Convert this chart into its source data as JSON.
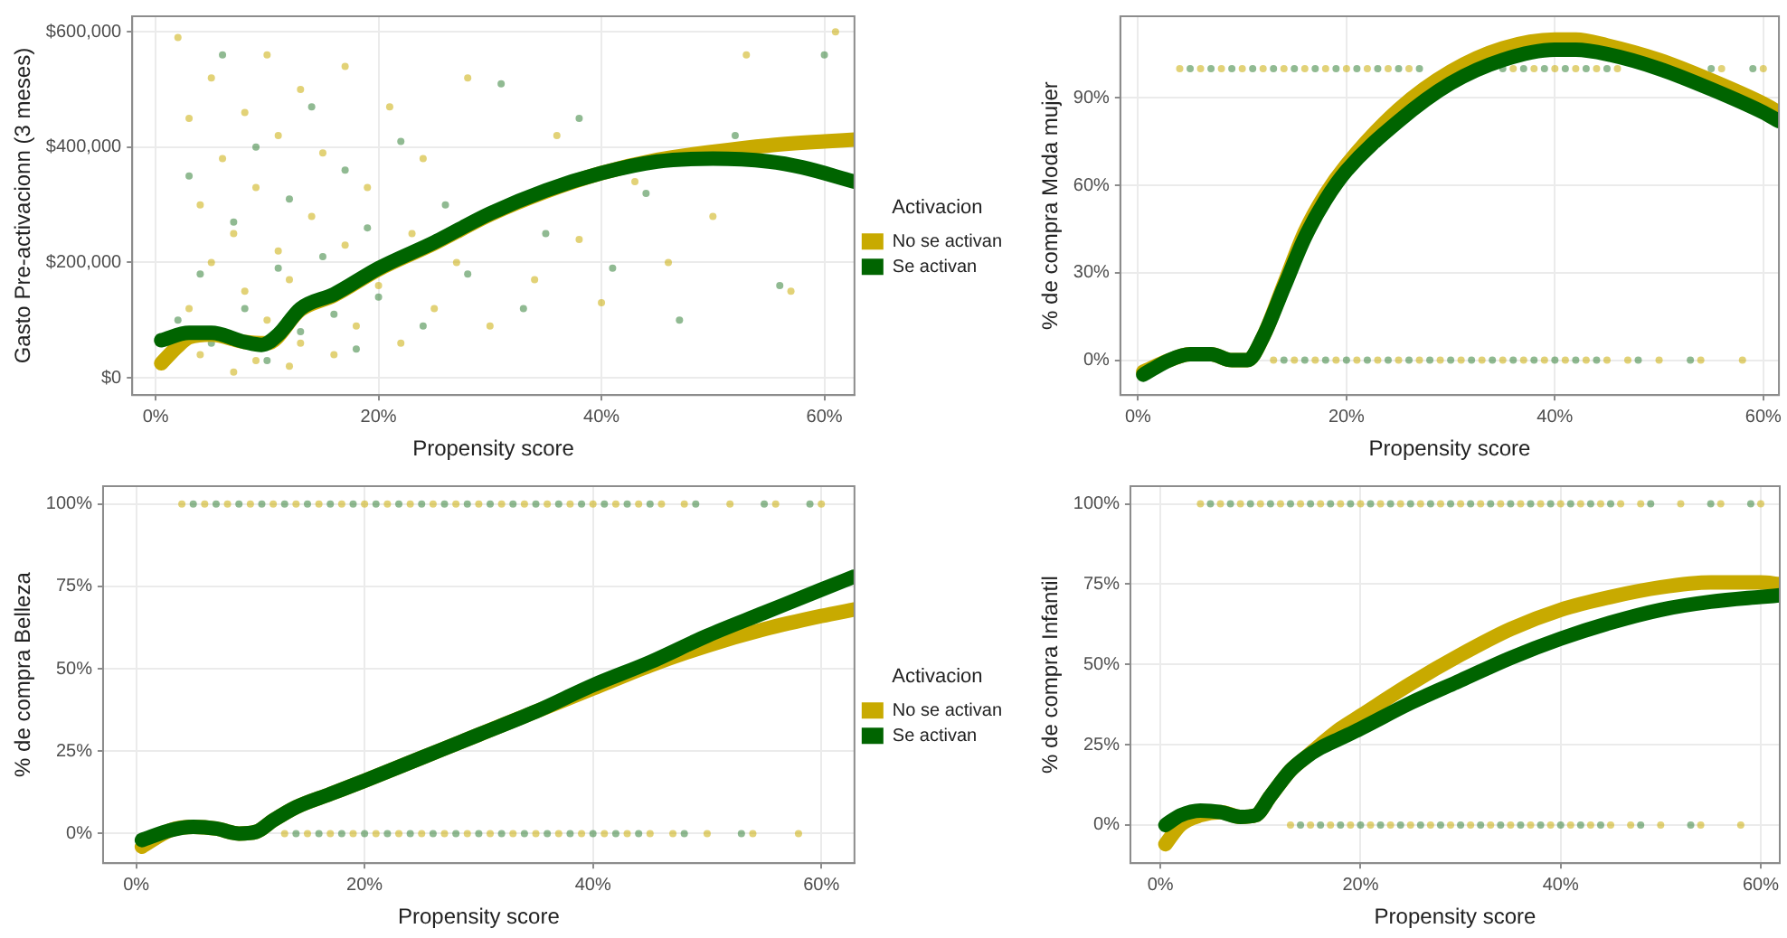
{
  "chart_data": [
    {
      "type": "line",
      "xlabel": "Propensity score",
      "ylabel": "Gasto Pre-activacionn (3 meses)",
      "legend": "right",
      "legend_title": "Activacion",
      "grid": true,
      "xlim": [
        -2.1,
        62.7
      ],
      "xticks": [
        {
          "value": 0,
          "label": "0%"
        },
        {
          "value": 20,
          "label": "20%"
        },
        {
          "value": 40,
          "label": "40%"
        },
        {
          "value": 60,
          "label": "60%"
        }
      ],
      "ylim": [
        -30000,
        627000
      ],
      "yticks": [
        {
          "value": 0,
          "label": "$0"
        },
        {
          "value": 200000,
          "label": "$200,000"
        },
        {
          "value": 400000,
          "label": "$400,000"
        },
        {
          "value": 600000,
          "label": "$600,000"
        }
      ],
      "series": [
        {
          "type": "scatter",
          "marker": "circle",
          "color": "#c8aa00",
          "x": [
            2,
            3,
            3,
            4,
            4,
            5,
            5,
            6,
            7,
            7,
            8,
            8,
            9,
            9,
            10,
            10,
            11,
            11,
            12,
            12,
            13,
            13,
            14,
            15,
            16,
            17,
            17,
            18,
            19,
            20,
            21,
            22,
            23,
            24,
            25,
            27,
            28,
            30,
            34,
            36,
            38,
            40,
            43,
            46,
            50,
            53,
            57,
            61
          ],
          "values": [
            590000,
            450000,
            120000,
            300000,
            40000,
            520000,
            200000,
            380000,
            10000,
            250000,
            460000,
            150000,
            30000,
            330000,
            560000,
            100000,
            220000,
            420000,
            20000,
            170000,
            500000,
            60000,
            280000,
            390000,
            40000,
            230000,
            540000,
            90000,
            330000,
            160000,
            470000,
            60000,
            250000,
            380000,
            120000,
            200000,
            520000,
            90000,
            170000,
            420000,
            240000,
            130000,
            340000,
            200000,
            280000,
            560000,
            150000,
            600000
          ]
        },
        {
          "type": "scatter",
          "marker": "circle",
          "color": "#2e7d32",
          "x": [
            2,
            3,
            4,
            5,
            6,
            7,
            8,
            9,
            10,
            11,
            12,
            13,
            14,
            15,
            16,
            17,
            18,
            19,
            20,
            22,
            24,
            26,
            28,
            31,
            33,
            35,
            38,
            41,
            44,
            47,
            52,
            56,
            60
          ],
          "values": [
            100000,
            350000,
            180000,
            60000,
            560000,
            270000,
            120000,
            400000,
            30000,
            190000,
            310000,
            80000,
            470000,
            210000,
            110000,
            360000,
            50000,
            260000,
            140000,
            410000,
            90000,
            300000,
            180000,
            510000,
            120000,
            250000,
            450000,
            190000,
            320000,
            100000,
            420000,
            160000,
            560000
          ]
        },
        {
          "name": "No se activan",
          "color": "#c8aa00",
          "x": [
            0.5,
            2,
            3,
            5,
            8,
            10,
            13,
            16,
            20,
            25,
            30,
            35,
            40,
            45,
            50,
            55,
            60,
            62.7
          ],
          "values": [
            25000,
            55000,
            70000,
            75000,
            62000,
            60000,
            118000,
            143000,
            188000,
            233000,
            283000,
            323000,
            355000,
            378000,
            392000,
            403000,
            410000,
            413000
          ]
        },
        {
          "name": "Se activan",
          "color": "#006400",
          "x": [
            0.5,
            3,
            5,
            8,
            9.5,
            11,
            13,
            16,
            20,
            25,
            30,
            35,
            40,
            45,
            50,
            55,
            58,
            62.7
          ],
          "values": [
            65000,
            78000,
            78000,
            62000,
            57000,
            75000,
            120000,
            145000,
            190000,
            235000,
            285000,
            325000,
            355000,
            375000,
            380000,
            375000,
            365000,
            340000
          ]
        }
      ]
    },
    {
      "type": "line",
      "xlabel": "Propensity score",
      "ylabel": "% de compra Moda mujer",
      "grid": true,
      "xlim": [
        -1.7,
        61.5
      ],
      "xticks": [
        {
          "value": 0,
          "label": "0%"
        },
        {
          "value": 20,
          "label": "20%"
        },
        {
          "value": 40,
          "label": "40%"
        },
        {
          "value": 60,
          "label": "60%"
        }
      ],
      "ylim": [
        -12,
        118
      ],
      "yticks": [
        {
          "value": 0,
          "label": "0%"
        },
        {
          "value": 30,
          "label": "30%"
        },
        {
          "value": 60,
          "label": "60%"
        },
        {
          "value": 90,
          "label": "90%"
        }
      ],
      "series": [
        {
          "type": "scatter",
          "marker": "circle",
          "color": "#c8aa00",
          "x": [
            13,
            15,
            17,
            19,
            21,
            23,
            25,
            27,
            29,
            31,
            33,
            35,
            37,
            39,
            41,
            43,
            45,
            47,
            50,
            54,
            58,
            4,
            6,
            8,
            10,
            12,
            14,
            16,
            18,
            20,
            22,
            24,
            26,
            36,
            38,
            40,
            42,
            44,
            46,
            56,
            60
          ],
          "values": [
            0,
            0,
            0,
            0,
            0,
            0,
            0,
            0,
            0,
            0,
            0,
            0,
            0,
            0,
            0,
            0,
            0,
            0,
            0,
            0,
            0,
            100,
            100,
            100,
            100,
            100,
            100,
            100,
            100,
            100,
            100,
            100,
            100,
            100,
            100,
            100,
            100,
            100,
            100,
            100,
            100
          ]
        },
        {
          "type": "scatter",
          "marker": "circle",
          "color": "#2e7d32",
          "x": [
            14,
            16,
            18,
            20,
            22,
            24,
            26,
            28,
            30,
            32,
            34,
            36,
            38,
            40,
            42,
            44,
            48,
            53,
            5,
            7,
            9,
            11,
            13,
            15,
            17,
            19,
            21,
            23,
            25,
            27,
            35,
            37,
            39,
            41,
            43,
            45,
            55,
            59
          ],
          "values": [
            0,
            0,
            0,
            0,
            0,
            0,
            0,
            0,
            0,
            0,
            0,
            0,
            0,
            0,
            0,
            0,
            0,
            0,
            100,
            100,
            100,
            100,
            100,
            100,
            100,
            100,
            100,
            100,
            100,
            100,
            100,
            100,
            100,
            100,
            100,
            100,
            100,
            100
          ]
        },
        {
          "color": "#c8aa00",
          "x": [
            0.5,
            3,
            5,
            7,
            9,
            10.5,
            12,
            14,
            16,
            18,
            20,
            25,
            30,
            35,
            40,
            42,
            45,
            50,
            55,
            60,
            61.5
          ],
          "values": [
            -4,
            0,
            2,
            2,
            0,
            0,
            8,
            26,
            44,
            57,
            67,
            86,
            99,
            107,
            110,
            110,
            108,
            103,
            96,
            88,
            85
          ]
        },
        {
          "color": "#006400",
          "x": [
            0.5,
            3,
            5,
            7,
            9,
            10.5,
            12,
            14,
            16,
            18,
            20,
            25,
            30,
            35,
            40,
            42,
            45,
            50,
            55,
            60,
            61.5
          ],
          "values": [
            -5,
            0,
            2,
            2,
            0,
            0,
            8,
            25,
            42,
            55,
            65,
            82,
            95,
            103,
            106.5,
            106.5,
            105,
            100,
            93,
            85,
            82
          ]
        }
      ]
    },
    {
      "type": "line",
      "xlabel": "Propensity score",
      "ylabel": "% de compra Belleza",
      "legend": "right",
      "legend_title": "Activacion",
      "grid": true,
      "xlim": [
        -2.9,
        62.9
      ],
      "xticks": [
        {
          "value": 0,
          "label": "0%"
        },
        {
          "value": 20,
          "label": "20%"
        },
        {
          "value": 40,
          "label": "40%"
        },
        {
          "value": 60,
          "label": "60%"
        }
      ],
      "ylim": [
        -9,
        105.4
      ],
      "yticks": [
        {
          "value": 0,
          "label": "0%"
        },
        {
          "value": 25,
          "label": "25%"
        },
        {
          "value": 50,
          "label": "50%"
        },
        {
          "value": 75,
          "label": "75%"
        },
        {
          "value": 100,
          "label": "100%"
        }
      ],
      "series": [
        {
          "type": "scatter",
          "marker": "circle",
          "color": "#c8aa00",
          "x": [
            13,
            15,
            17,
            19,
            21,
            23,
            25,
            27,
            29,
            31,
            33,
            35,
            37,
            39,
            41,
            43,
            45,
            47,
            50,
            54,
            58,
            4,
            6,
            8,
            10,
            12,
            14,
            16,
            18,
            20,
            22,
            24,
            26,
            28,
            30,
            32,
            34,
            36,
            38,
            40,
            42,
            44,
            46,
            48,
            52,
            56,
            60
          ],
          "values": [
            0,
            0,
            0,
            0,
            0,
            0,
            0,
            0,
            0,
            0,
            0,
            0,
            0,
            0,
            0,
            0,
            0,
            0,
            0,
            0,
            0,
            100,
            100,
            100,
            100,
            100,
            100,
            100,
            100,
            100,
            100,
            100,
            100,
            100,
            100,
            100,
            100,
            100,
            100,
            100,
            100,
            100,
            100,
            100,
            100,
            100,
            100
          ]
        },
        {
          "type": "scatter",
          "marker": "circle",
          "color": "#2e7d32",
          "x": [
            14,
            16,
            18,
            20,
            22,
            24,
            26,
            28,
            30,
            32,
            34,
            36,
            38,
            40,
            42,
            44,
            48,
            53,
            5,
            7,
            9,
            11,
            13,
            15,
            17,
            19,
            21,
            23,
            25,
            27,
            29,
            31,
            33,
            35,
            37,
            39,
            41,
            43,
            45,
            49,
            55,
            59
          ],
          "values": [
            0,
            0,
            0,
            0,
            0,
            0,
            0,
            0,
            0,
            0,
            0,
            0,
            0,
            0,
            0,
            0,
            0,
            0,
            100,
            100,
            100,
            100,
            100,
            100,
            100,
            100,
            100,
            100,
            100,
            100,
            100,
            100,
            100,
            100,
            100,
            100,
            100,
            100,
            100,
            100,
            100,
            100
          ]
        },
        {
          "name": "No se activan",
          "color": "#c8aa00",
          "x": [
            0.5,
            3,
            5,
            7,
            9,
            10.5,
            12,
            14,
            17,
            20,
            25,
            30,
            35,
            40,
            45,
            50,
            55,
            60,
            62.9
          ],
          "values": [
            -4,
            1,
            2,
            1.5,
            0,
            0.5,
            4,
            8,
            12,
            16,
            23,
            30,
            37,
            44,
            51,
            57,
            62,
            66,
            68
          ]
        },
        {
          "name": "Se activan",
          "color": "#006400",
          "x": [
            0.5,
            3,
            5,
            7,
            9,
            10.5,
            12,
            14,
            17,
            20,
            25,
            30,
            35,
            40,
            45,
            50,
            55,
            60,
            62.9
          ],
          "values": [
            -2,
            1,
            2,
            1.5,
            0,
            0.5,
            4,
            8,
            12,
            16,
            23,
            30,
            37,
            45,
            52,
            60,
            67,
            74,
            78
          ]
        }
      ]
    },
    {
      "type": "line",
      "xlabel": "Propensity score",
      "ylabel": "% de compra Infantil",
      "grid": true,
      "xlim": [
        -3,
        61.9
      ],
      "xticks": [
        {
          "value": 0,
          "label": "0%"
        },
        {
          "value": 20,
          "label": "20%"
        },
        {
          "value": 40,
          "label": "40%"
        },
        {
          "value": 60,
          "label": "60%"
        }
      ],
      "ylim": [
        -11.9,
        105.5
      ],
      "yticks": [
        {
          "value": 0,
          "label": "0%"
        },
        {
          "value": 25,
          "label": "25%"
        },
        {
          "value": 50,
          "label": "50%"
        },
        {
          "value": 75,
          "label": "75%"
        },
        {
          "value": 100,
          "label": "100%"
        }
      ],
      "series": [
        {
          "type": "scatter",
          "marker": "circle",
          "color": "#c8aa00",
          "x": [
            13,
            15,
            17,
            19,
            21,
            23,
            25,
            27,
            29,
            31,
            33,
            35,
            37,
            39,
            41,
            43,
            45,
            47,
            50,
            54,
            58,
            4,
            6,
            8,
            10,
            12,
            14,
            16,
            18,
            20,
            22,
            24,
            26,
            28,
            30,
            32,
            34,
            36,
            38,
            40,
            42,
            44,
            46,
            48,
            52,
            56,
            60
          ],
          "values": [
            0,
            0,
            0,
            0,
            0,
            0,
            0,
            0,
            0,
            0,
            0,
            0,
            0,
            0,
            0,
            0,
            0,
            0,
            0,
            0,
            0,
            100,
            100,
            100,
            100,
            100,
            100,
            100,
            100,
            100,
            100,
            100,
            100,
            100,
            100,
            100,
            100,
            100,
            100,
            100,
            100,
            100,
            100,
            100,
            100,
            100,
            100
          ]
        },
        {
          "type": "scatter",
          "marker": "circle",
          "color": "#2e7d32",
          "x": [
            14,
            16,
            18,
            20,
            22,
            24,
            26,
            28,
            30,
            32,
            34,
            36,
            38,
            40,
            42,
            44,
            48,
            53,
            5,
            7,
            9,
            11,
            13,
            15,
            17,
            19,
            21,
            23,
            25,
            27,
            29,
            31,
            33,
            35,
            37,
            39,
            41,
            43,
            45,
            49,
            55,
            59
          ],
          "values": [
            0,
            0,
            0,
            0,
            0,
            0,
            0,
            0,
            0,
            0,
            0,
            0,
            0,
            0,
            0,
            0,
            0,
            0,
            100,
            100,
            100,
            100,
            100,
            100,
            100,
            100,
            100,
            100,
            100,
            100,
            100,
            100,
            100,
            100,
            100,
            100,
            100,
            100,
            100,
            100,
            100,
            100
          ]
        },
        {
          "color": "#c8aa00",
          "x": [
            0.5,
            2,
            4,
            6,
            8,
            9.5,
            11,
            13,
            14.5,
            16,
            18,
            20,
            25,
            30,
            35,
            40,
            45,
            50,
            55,
            60,
            61.9
          ],
          "values": [
            -6,
            0,
            3,
            4,
            2.5,
            3,
            9,
            17,
            21,
            25,
            30,
            34,
            44,
            53,
            61,
            67,
            71,
            74,
            75.5,
            75.5,
            75
          ]
        },
        {
          "color": "#006400",
          "x": [
            0.5,
            2,
            4,
            6,
            8,
            9.5,
            11,
            13,
            14.5,
            16,
            18,
            20,
            25,
            30,
            35,
            40,
            45,
            50,
            55,
            60,
            61.9
          ],
          "values": [
            0,
            3,
            4.5,
            4,
            2.5,
            3,
            9,
            17,
            21,
            24,
            27,
            30,
            38,
            45,
            52,
            58,
            63,
            67,
            69.5,
            71,
            71.5
          ]
        }
      ]
    }
  ]
}
